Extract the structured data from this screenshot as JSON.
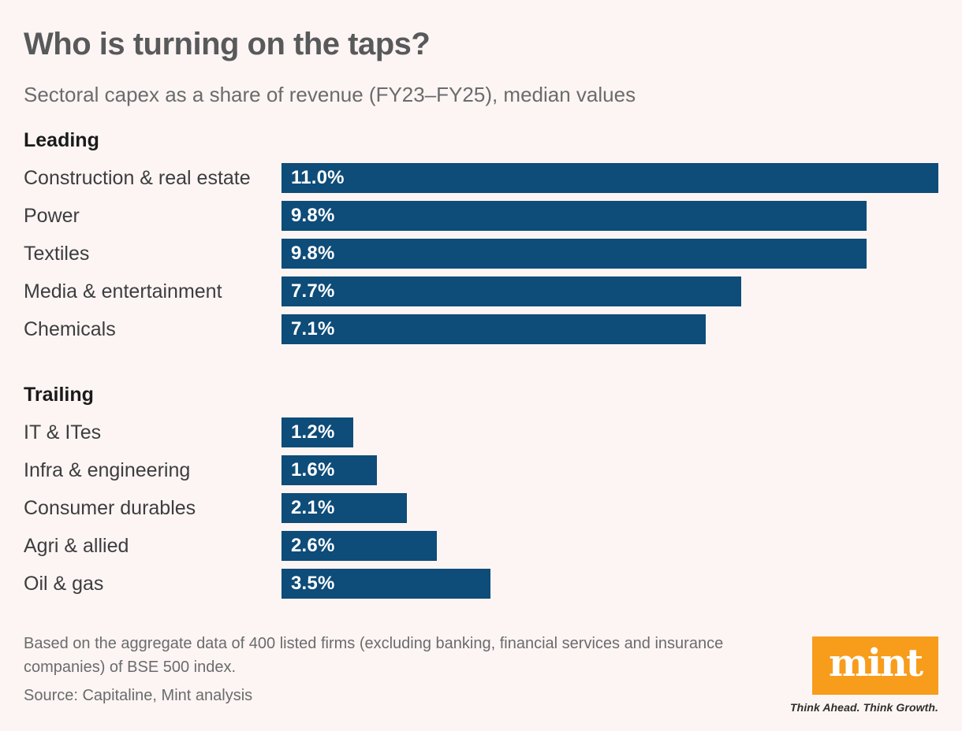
{
  "title": "Who is turning on the taps?",
  "subtitle": "Sectoral capex as a share of revenue (FY23–FY25), median values",
  "chart_data": {
    "type": "bar",
    "orientation": "horizontal",
    "value_unit": "% of revenue (median capex share)",
    "xlim": [
      0,
      11.0
    ],
    "grid": false,
    "legend": "none",
    "bar_color": "#0e4c79",
    "groups": [
      {
        "label": "Leading",
        "rows": [
          {
            "category": "Construction & real estate",
            "value": 11.0,
            "display": "11.0%"
          },
          {
            "category": "Power",
            "value": 9.8,
            "display": "9.8%"
          },
          {
            "category": "Textiles",
            "value": 9.8,
            "display": "9.8%"
          },
          {
            "category": "Media & entertainment",
            "value": 7.7,
            "display": "7.7%"
          },
          {
            "category": "Chemicals",
            "value": 7.1,
            "display": "7.1%"
          }
        ]
      },
      {
        "label": "Trailing",
        "rows": [
          {
            "category": "IT & ITes",
            "value": 1.2,
            "display": "1.2%"
          },
          {
            "category": "Infra & engineering",
            "value": 1.6,
            "display": "1.6%"
          },
          {
            "category": "Consumer durables",
            "value": 2.1,
            "display": "2.1%"
          },
          {
            "category": "Agri & allied",
            "value": 2.6,
            "display": "2.6%"
          },
          {
            "category": "Oil & gas",
            "value": 3.5,
            "display": "3.5%"
          }
        ]
      }
    ]
  },
  "footer": {
    "note": "Based on the aggregate data of 400 listed firms (excluding banking, financial services and insurance companies) of BSE 500 index.",
    "source": "Source: Capitaline, Mint analysis"
  },
  "branding": {
    "logo_text": "mint",
    "tagline": "Think Ahead. Think Growth.",
    "logo_color": "#f89c1c"
  },
  "colors": {
    "background": "#fdf5f3",
    "bar": "#0e4c79",
    "title": "#58595b",
    "subtitle": "#6a6b6d",
    "section_heading": "#1a1a1a",
    "row_label": "#3c3d3f",
    "value_label": "#ffffff"
  }
}
